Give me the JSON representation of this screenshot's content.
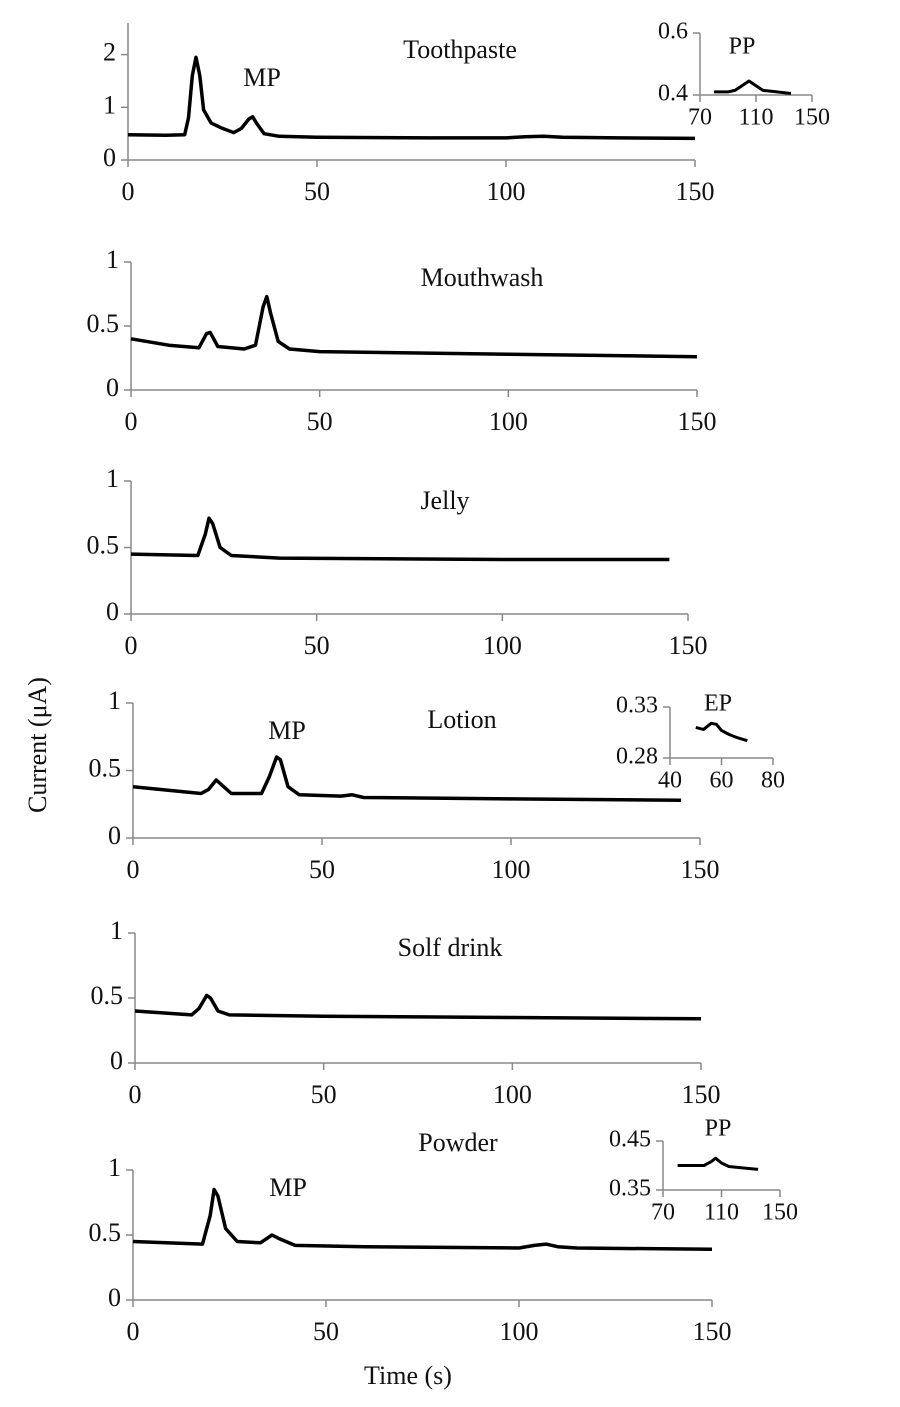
{
  "axis_labels": {
    "x": "Time (s)",
    "y": "Current (μA)"
  },
  "chart_data": [
    {
      "type": "line",
      "title": "Toothpaste",
      "annotations": [
        "MP"
      ],
      "color": "#000000",
      "x": [
        0,
        10,
        15,
        16,
        17,
        18,
        19,
        20,
        22,
        25,
        28,
        30,
        32,
        33,
        34,
        36,
        40,
        50,
        80,
        100,
        105,
        110,
        115,
        130,
        150
      ],
      "values": [
        0.48,
        0.47,
        0.48,
        0.8,
        1.6,
        1.95,
        1.6,
        0.95,
        0.7,
        0.6,
        0.52,
        0.6,
        0.78,
        0.82,
        0.7,
        0.5,
        0.45,
        0.43,
        0.42,
        0.42,
        0.44,
        0.45,
        0.43,
        0.42,
        0.41
      ],
      "xlim": [
        0,
        150
      ],
      "ylim": [
        0,
        2.6
      ],
      "xticks": [
        0,
        50,
        100,
        150
      ],
      "yticks": [
        0,
        1,
        2
      ]
    },
    {
      "type": "line",
      "title": "Mouthwash",
      "color": "#000000",
      "x": [
        0,
        10,
        18,
        20,
        21,
        23,
        30,
        33,
        35,
        36,
        37,
        39,
        42,
        50,
        100,
        150
      ],
      "values": [
        0.4,
        0.35,
        0.33,
        0.44,
        0.45,
        0.34,
        0.32,
        0.35,
        0.65,
        0.73,
        0.6,
        0.38,
        0.32,
        0.3,
        0.28,
        0.26
      ],
      "xlim": [
        0,
        150
      ],
      "ylim": [
        0,
        1
      ],
      "xticks": [
        0,
        50,
        100,
        150
      ],
      "yticks": [
        0,
        0.5,
        1
      ]
    },
    {
      "type": "line",
      "title": "Jelly",
      "color": "#000000",
      "x": [
        0,
        18,
        20,
        21,
        22,
        24,
        27,
        40,
        100,
        145
      ],
      "values": [
        0.45,
        0.44,
        0.6,
        0.72,
        0.68,
        0.5,
        0.44,
        0.42,
        0.41,
        0.41
      ],
      "xlim": [
        0,
        150
      ],
      "ylim": [
        0,
        1
      ],
      "xticks": [
        0,
        50,
        100,
        150
      ],
      "yticks": [
        0,
        0.5,
        1
      ]
    },
    {
      "type": "line",
      "title": "Lotion",
      "annotations": [
        "MP"
      ],
      "color": "#000000",
      "x": [
        0,
        18,
        20,
        22,
        24,
        26,
        34,
        36,
        38,
        39,
        41,
        44,
        55,
        58,
        61,
        100,
        145
      ],
      "values": [
        0.38,
        0.33,
        0.36,
        0.43,
        0.38,
        0.33,
        0.33,
        0.45,
        0.6,
        0.58,
        0.38,
        0.32,
        0.31,
        0.32,
        0.3,
        0.29,
        0.28
      ],
      "xlim": [
        0,
        150
      ],
      "ylim": [
        0,
        1
      ],
      "xticks": [
        0,
        50,
        100,
        150
      ],
      "yticks": [
        0,
        0.5,
        1
      ]
    },
    {
      "type": "line",
      "title": "Solf drink",
      "color": "#000000",
      "x": [
        0,
        15,
        17,
        19,
        20,
        22,
        25,
        50,
        100,
        150
      ],
      "values": [
        0.4,
        0.37,
        0.42,
        0.52,
        0.5,
        0.4,
        0.37,
        0.36,
        0.35,
        0.34
      ],
      "xlim": [
        0,
        150
      ],
      "ylim": [
        0,
        1
      ],
      "xticks": [
        0,
        50,
        100,
        150
      ],
      "yticks": [
        0,
        0.5,
        1
      ]
    },
    {
      "type": "line",
      "title": "Powder",
      "annotations": [
        "MP"
      ],
      "color": "#000000",
      "x": [
        0,
        18,
        20,
        21,
        22,
        24,
        27,
        33,
        36,
        38,
        42,
        60,
        100,
        104,
        107,
        110,
        115,
        150
      ],
      "values": [
        0.45,
        0.43,
        0.65,
        0.85,
        0.8,
        0.55,
        0.45,
        0.44,
        0.5,
        0.47,
        0.42,
        0.41,
        0.4,
        0.42,
        0.43,
        0.41,
        0.4,
        0.39
      ],
      "xlim": [
        0,
        150
      ],
      "ylim": [
        0,
        1
      ],
      "xticks": [
        0,
        50,
        100,
        150
      ],
      "yticks": [
        0,
        0.5,
        1
      ]
    },
    {
      "type": "line",
      "title": "PP",
      "color": "#000000",
      "x": [
        80,
        90,
        95,
        100,
        105,
        110,
        115,
        125,
        135
      ],
      "values": [
        0.41,
        0.41,
        0.415,
        0.43,
        0.445,
        0.43,
        0.415,
        0.41,
        0.405
      ],
      "xlim": [
        70,
        150
      ],
      "ylim": [
        0.4,
        0.6
      ],
      "xticks": [
        70,
        110,
        150
      ],
      "yticks": [
        0.4,
        0.6
      ]
    },
    {
      "type": "line",
      "title": "EP",
      "color": "#000000",
      "x": [
        50,
        53,
        56,
        58,
        60,
        63,
        66,
        70
      ],
      "values": [
        0.31,
        0.308,
        0.314,
        0.313,
        0.307,
        0.303,
        0.3,
        0.297
      ],
      "xlim": [
        40,
        80
      ],
      "ylim": [
        0.28,
        0.33
      ],
      "xticks": [
        40,
        60,
        80
      ],
      "yticks": [
        0.28,
        0.33
      ]
    },
    {
      "type": "line",
      "title": "PP",
      "color": "#000000",
      "x": [
        80,
        90,
        98,
        103,
        106,
        110,
        115,
        125,
        135
      ],
      "values": [
        0.4,
        0.4,
        0.4,
        0.408,
        0.415,
        0.405,
        0.398,
        0.395,
        0.392
      ],
      "xlim": [
        70,
        150
      ],
      "ylim": [
        0.35,
        0.45
      ],
      "xticks": [
        70,
        110,
        150
      ],
      "yticks": [
        0.35,
        0.45
      ]
    }
  ]
}
